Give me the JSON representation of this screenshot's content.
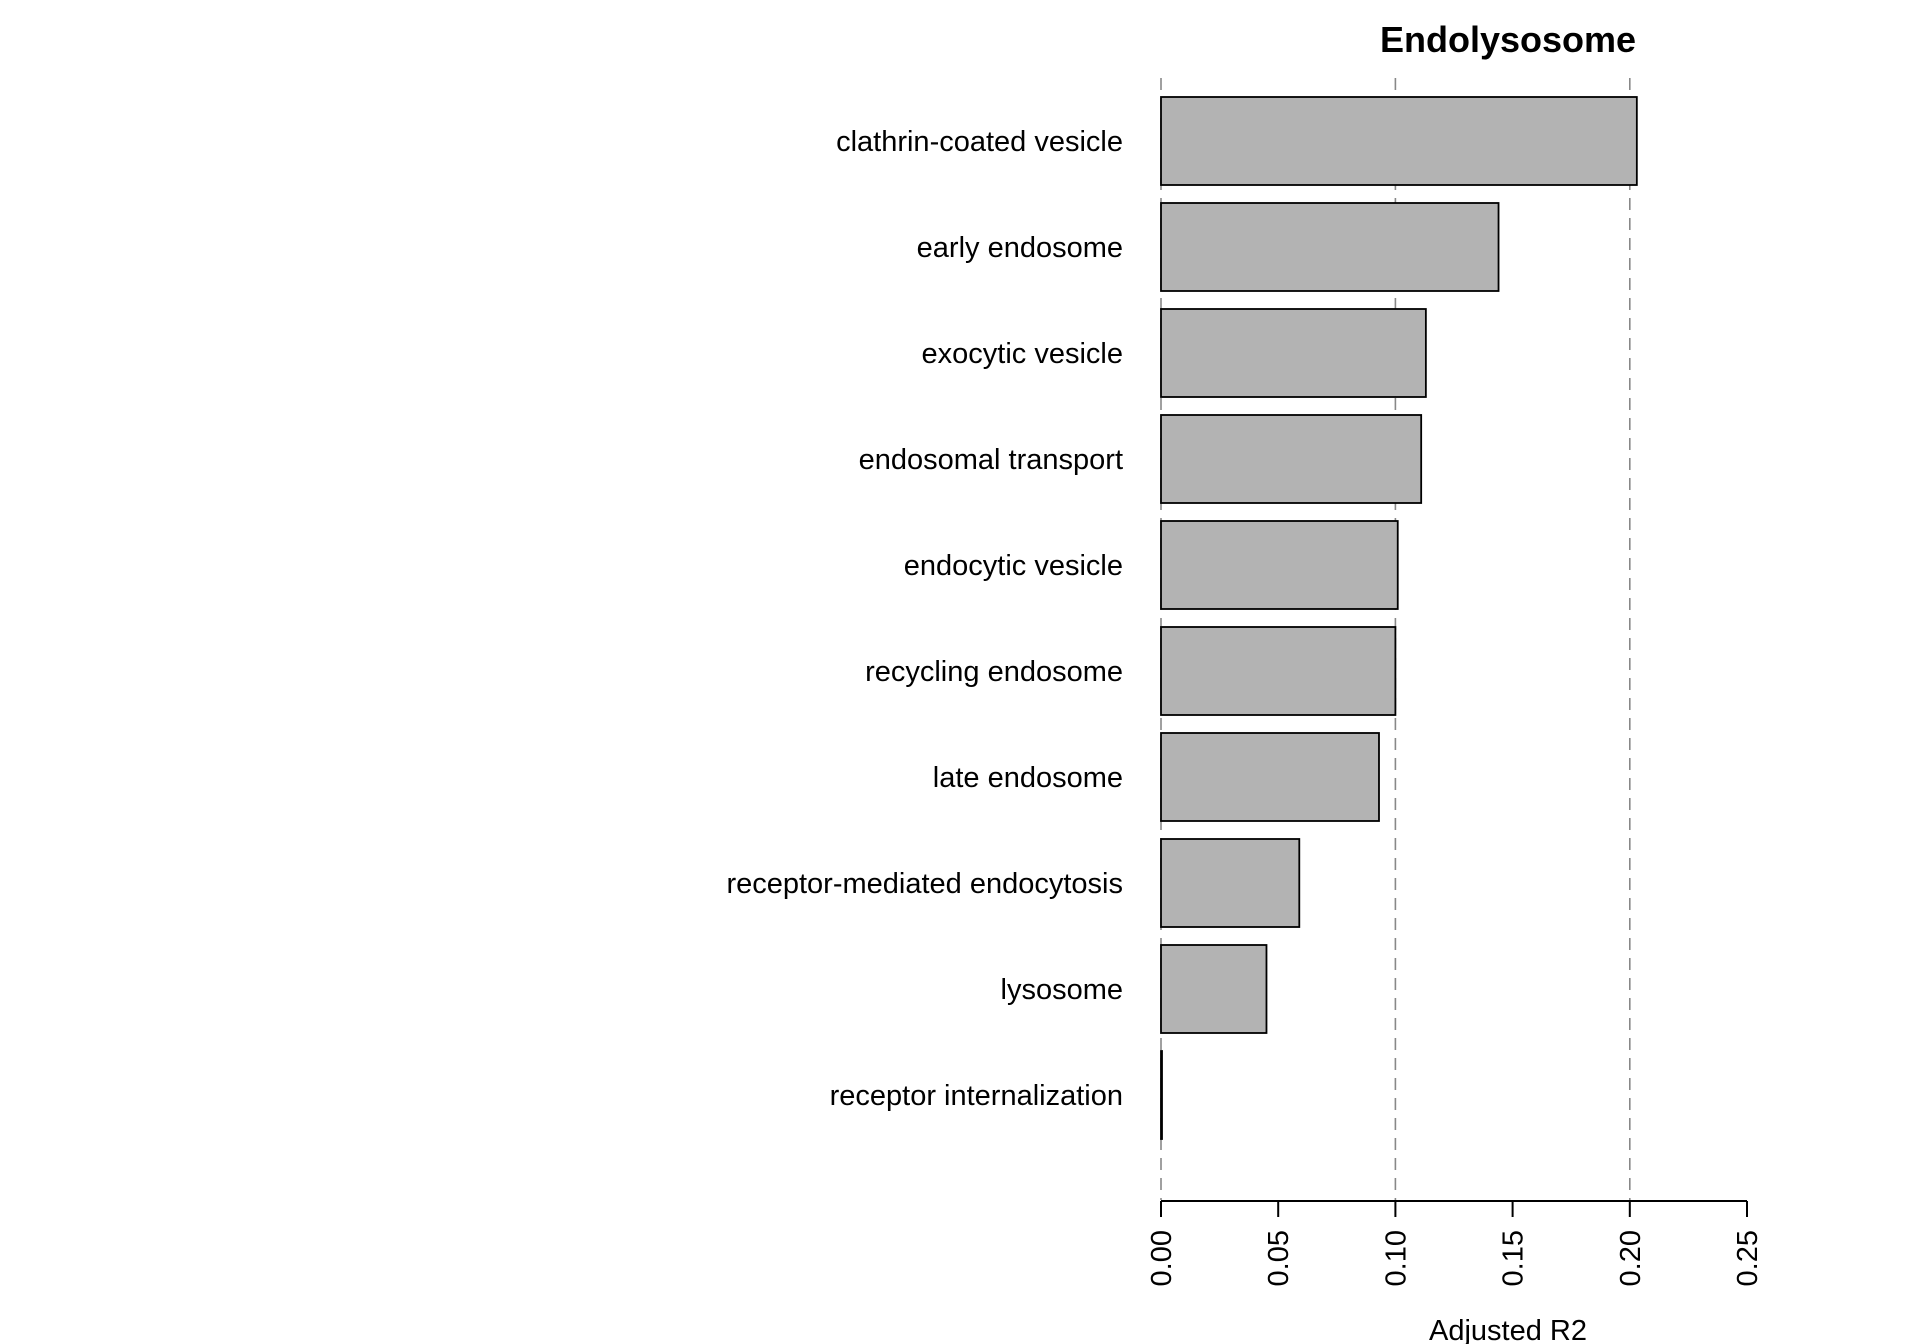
{
  "chart_data": {
    "type": "bar",
    "orientation": "horizontal",
    "title": "Endolysosome",
    "xlabel": "Adjusted R2",
    "ylabel": "",
    "categories": [
      "clathrin-coated vesicle",
      "early endosome",
      "exocytic vesicle",
      "endosomal transport",
      "endocytic vesicle",
      "recycling endosome",
      "late endosome",
      "receptor-mediated endocytosis",
      "lysosome",
      "receptor internalization"
    ],
    "values": [
      0.203,
      0.144,
      0.113,
      0.111,
      0.101,
      0.1,
      0.093,
      0.059,
      0.045,
      0.0
    ],
    "xlim": [
      0,
      0.25
    ],
    "xticks": [
      "0.00",
      "0.05",
      "0.10",
      "0.15",
      "0.20",
      "0.25"
    ],
    "gridlines_at": [
      0,
      0.1,
      0.2
    ],
    "grid": "dashed vertical",
    "bar_fill": "#b3b3b3",
    "bar_stroke": "#000000",
    "grid_color": "#888888"
  }
}
